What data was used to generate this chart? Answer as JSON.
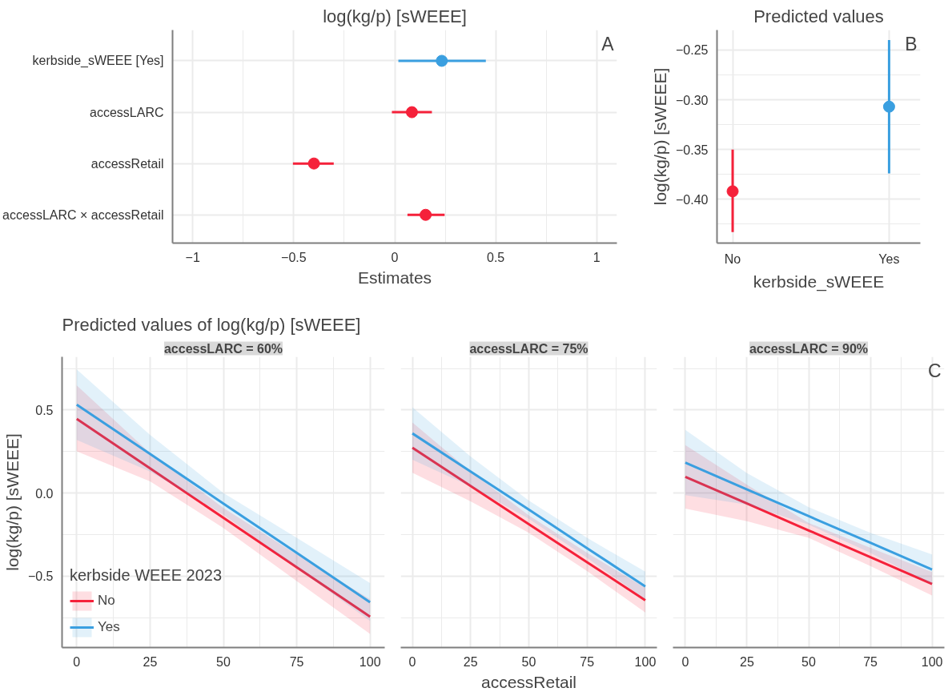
{
  "chart_data": [
    {
      "type": "scatter",
      "orientation": "horizontal",
      "title": "log(kg/p) [sWEEE]",
      "xlabel": "Estimates",
      "categories": [
        "kerbside_sWEEE [Yes]",
        "accessLARC",
        "accessRetail",
        "accessLARC × accessRetail"
      ],
      "values": [
        0.233,
        0.085,
        -0.4,
        0.153
      ],
      "errors": [
        [
          0.018,
          0.451
        ],
        [
          -0.014,
          0.184
        ],
        [
          -0.504,
          -0.302
        ],
        [
          0.063,
          0.247
        ]
      ],
      "colors": [
        "#3a9fe0",
        "#f5213a",
        "#f5213a",
        "#f5213a"
      ],
      "xlim": [
        -1.1,
        1.1
      ],
      "xticks": [
        {
          "value": -1,
          "label": "−1"
        },
        {
          "value": -0.5,
          "label": "−0.5"
        },
        0,
        0.5,
        1
      ],
      "grid": true,
      "marker": "circle",
      "annotations": [
        "A"
      ]
    },
    {
      "type": "scatter",
      "title": "Predicted values",
      "xlabel": "kerbside_sWEEE",
      "ylabel": "log(kg/p) [sWEEE]",
      "categories": [
        "No",
        "Yes"
      ],
      "values": [
        -0.392,
        -0.307
      ],
      "errors": [
        [
          -0.433,
          -0.35
        ],
        [
          -0.374,
          -0.24
        ]
      ],
      "colors": [
        "#f5213a",
        "#3a9fe0"
      ],
      "ylim": [
        -0.444,
        -0.23
      ],
      "yticks": [
        {
          "value": -0.425,
          "label": null
        },
        {
          "value": -0.4,
          "label": "−0.40"
        },
        {
          "value": -0.375,
          "label": null
        },
        {
          "value": -0.35,
          "label": "−0.35"
        },
        {
          "value": -0.325,
          "label": null
        },
        {
          "value": -0.3,
          "label": "−0.30"
        },
        {
          "value": -0.275,
          "label": null
        },
        {
          "value": -0.25,
          "label": "−0.25"
        }
      ],
      "grid": true,
      "marker": "circle",
      "annotations": [
        "B"
      ]
    },
    {
      "type": "line",
      "title": "Predicted values of log(kg/p) [sWEEE]",
      "subtitle": "accessLARC = 60%",
      "ylabel": "log(kg/p) [sWEEE]",
      "legend_title": "kerbside WEEE 2023",
      "x": [
        0,
        25,
        50,
        75,
        100
      ],
      "series": [
        {
          "name": "No",
          "color": "#f5213a",
          "values": [
            0.446,
            0.149,
            -0.149,
            -0.447,
            -0.744
          ],
          "lower": [
            0.251,
            0.07,
            -0.21,
            -0.53,
            -0.848
          ],
          "upper": [
            0.648,
            0.24,
            -0.09,
            -0.37,
            -0.64
          ]
        },
        {
          "name": "Yes",
          "color": "#3a9fe0",
          "values": [
            0.532,
            0.235,
            -0.063,
            -0.36,
            -0.658
          ],
          "lower": [
            0.32,
            0.13,
            -0.13,
            -0.45,
            -0.77
          ],
          "upper": [
            0.744,
            0.35,
            0.0,
            -0.27,
            -0.542
          ]
        }
      ],
      "xlim": [
        -5,
        105
      ],
      "xticks": [
        0,
        25,
        50,
        75,
        100
      ],
      "ylim": [
        -0.93,
        0.82
      ],
      "yticks": [
        {
          "value": -0.5,
          "label": "−0.5"
        },
        {
          "value": 0,
          "label": "0.0"
        },
        {
          "value": 0.5,
          "label": "0.5"
        }
      ],
      "grid": true,
      "legend": "bottom left"
    },
    {
      "type": "line",
      "subtitle": "accessLARC = 75%",
      "xlabel": "accessRetail",
      "x": [
        0,
        25,
        50,
        75,
        100
      ],
      "series": [
        {
          "color": "#f5213a",
          "values": [
            0.273,
            0.043,
            -0.187,
            -0.416,
            -0.646
          ],
          "lower": [
            0.122,
            -0.05,
            -0.24,
            -0.47,
            -0.719
          ],
          "upper": [
            0.425,
            0.13,
            -0.135,
            -0.36,
            -0.57
          ]
        },
        {
          "color": "#3a9fe0",
          "values": [
            0.359,
            0.129,
            -0.1,
            -0.332,
            -0.562
          ],
          "lower": [
            0.2,
            0.04,
            -0.155,
            -0.39,
            -0.64
          ],
          "upper": [
            0.516,
            0.22,
            -0.045,
            -0.27,
            -0.473
          ]
        }
      ],
      "xlim": [
        -5,
        105
      ],
      "xticks": [
        0,
        25,
        50,
        75,
        100
      ],
      "ylim": [
        -0.93,
        0.82
      ],
      "yticks": [
        {
          "value": -0.5,
          "label": null
        },
        {
          "value": 0,
          "label": null
        },
        {
          "value": 0.5,
          "label": null
        }
      ],
      "grid": true,
      "tick_labels": "x"
    },
    {
      "type": "line",
      "subtitle": "accessLARC = 90%",
      "x": [
        0,
        25,
        50,
        75,
        100
      ],
      "series": [
        {
          "color": "#f5213a",
          "values": [
            0.098,
            -0.063,
            -0.225,
            -0.386,
            -0.547
          ],
          "lower": [
            -0.093,
            -0.17,
            -0.27,
            -0.44,
            -0.617
          ],
          "upper": [
            0.288,
            0.05,
            -0.18,
            -0.33,
            -0.476
          ]
        },
        {
          "color": "#3a9fe0",
          "values": [
            0.183,
            0.022,
            -0.139,
            -0.299,
            -0.46
          ],
          "lower": [
            -0.013,
            -0.07,
            -0.19,
            -0.36,
            -0.55
          ],
          "upper": [
            0.38,
            0.12,
            -0.085,
            -0.24,
            -0.369
          ]
        }
      ],
      "xlim": [
        -5,
        105
      ],
      "xticks": [
        0,
        25,
        50,
        75,
        100
      ],
      "ylim": [
        -0.93,
        0.82
      ],
      "yticks": [
        {
          "value": -0.5,
          "label": null
        },
        {
          "value": 0,
          "label": null
        },
        {
          "value": 0.5,
          "label": null
        }
      ],
      "grid": true,
      "tick_labels": "x",
      "annotations": [
        "C"
      ]
    }
  ]
}
